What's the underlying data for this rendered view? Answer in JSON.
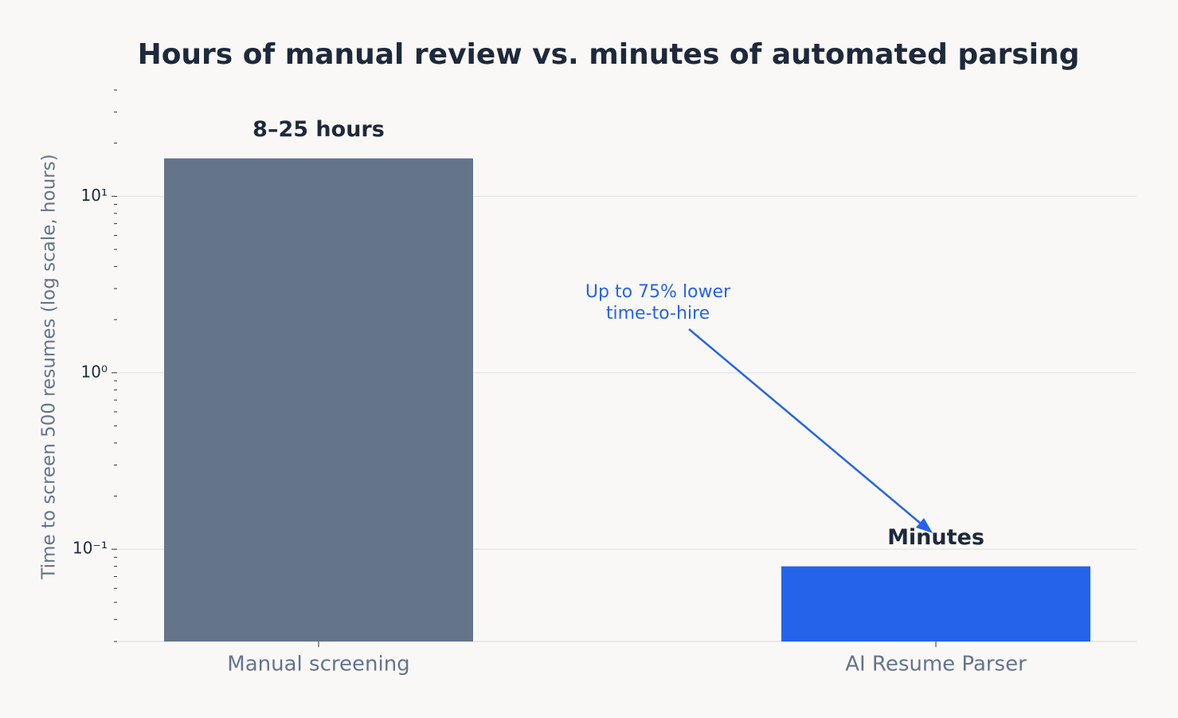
{
  "chart_data": {
    "type": "bar",
    "title": "Hours of manual review vs. minutes of automated parsing",
    "y_label": "Time to screen 500 resumes (log scale, hours)",
    "categories": [
      "Manual screening",
      "AI Resume Parser"
    ],
    "values": [
      16.4,
      0.08
    ],
    "colors": [
      "#64748b",
      "#2563eb"
    ],
    "bar_labels": [
      "8–25 hours",
      "Minutes"
    ],
    "annotation": {
      "lines": [
        "Up to 75% lower",
        "time-to-hire"
      ],
      "color": "#2563eb"
    },
    "log_scale": true,
    "ylim": [
      0.03,
      40
    ],
    "yticks": [
      {
        "value": 0.1,
        "label": "10⁻¹"
      },
      {
        "value": 1,
        "label": "10⁰"
      },
      {
        "value": 10,
        "label": "10¹"
      }
    ],
    "minor_yticks": [
      0.03,
      0.04,
      0.05,
      0.06,
      0.07,
      0.08,
      0.09,
      0.2,
      0.3,
      0.4,
      0.5,
      0.6,
      0.7,
      0.8,
      0.9,
      2,
      3,
      4,
      5,
      6,
      7,
      8,
      9,
      20,
      30,
      40
    ],
    "grid": true
  }
}
